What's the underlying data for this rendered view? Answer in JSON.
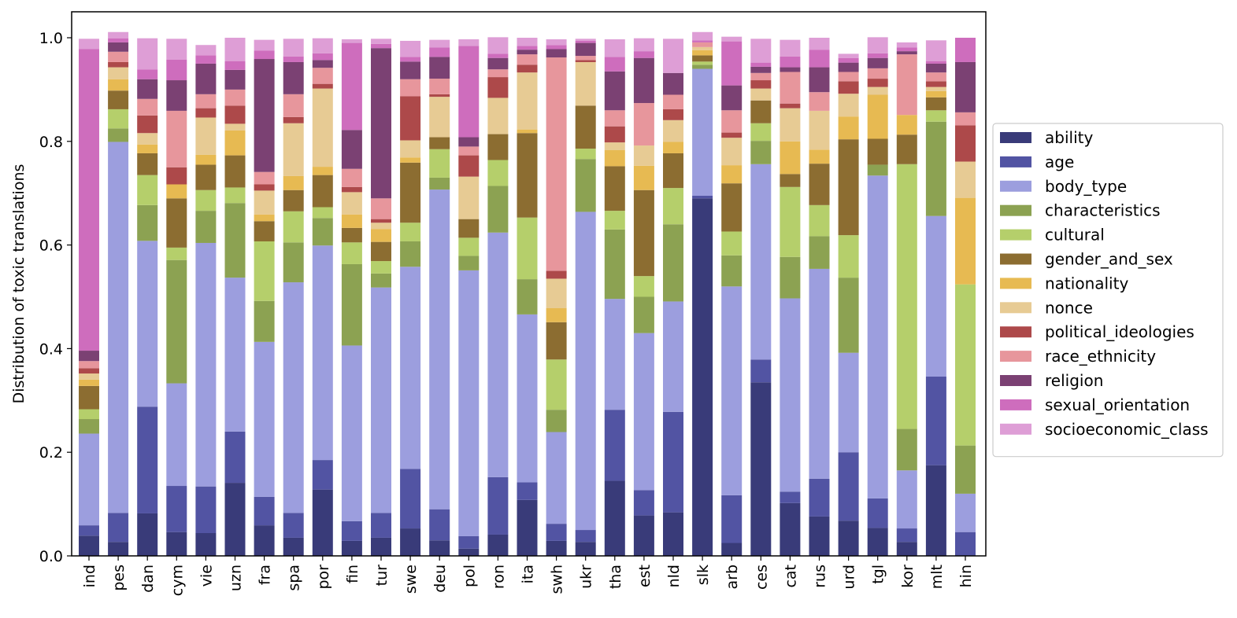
{
  "chart_data": {
    "type": "bar",
    "stacked": true,
    "title": "",
    "xlabel": "",
    "ylabel": "Distribution of toxic translations",
    "ylim": [
      0,
      1.0
    ],
    "yticks": [
      "0.0",
      "0.2",
      "0.4",
      "0.6",
      "0.8",
      "1.0"
    ],
    "grid": false,
    "legend_position": "right",
    "categories": [
      "ind",
      "pes",
      "dan",
      "cym",
      "vie",
      "uzn",
      "fra",
      "spa",
      "por",
      "fin",
      "tur",
      "swe",
      "deu",
      "pol",
      "ron",
      "ita",
      "swh",
      "ukr",
      "tha",
      "est",
      "nld",
      "slk",
      "arb",
      "ces",
      "cat",
      "rus",
      "urd",
      "tgl",
      "kor",
      "mlt",
      "hin"
    ],
    "series": [
      {
        "name": "ability",
        "color": "#393b79",
        "values": [
          0.039,
          0.027,
          0.082,
          0.046,
          0.044,
          0.141,
          0.059,
          0.035,
          0.128,
          0.029,
          0.035,
          0.053,
          0.03,
          0.014,
          0.041,
          0.108,
          0.029,
          0.027,
          0.145,
          0.078,
          0.084,
          0.69,
          0.025,
          0.335,
          0.102,
          0.076,
          0.068,
          0.054,
          0.027,
          0.175,
          0.0
        ]
      },
      {
        "name": "age",
        "color": "#5254a3",
        "values": [
          0.02,
          0.056,
          0.206,
          0.089,
          0.09,
          0.099,
          0.055,
          0.048,
          0.057,
          0.038,
          0.048,
          0.115,
          0.06,
          0.024,
          0.111,
          0.034,
          0.033,
          0.023,
          0.137,
          0.049,
          0.194,
          0.005,
          0.092,
          0.044,
          0.022,
          0.073,
          0.132,
          0.057,
          0.026,
          0.171,
          0.046
        ]
      },
      {
        "name": "body_type",
        "color": "#9c9ede",
        "values": [
          0.177,
          0.716,
          0.32,
          0.198,
          0.47,
          0.297,
          0.299,
          0.445,
          0.414,
          0.339,
          0.435,
          0.39,
          0.617,
          0.513,
          0.472,
          0.324,
          0.177,
          0.614,
          0.214,
          0.303,
          0.213,
          0.245,
          0.403,
          0.377,
          0.373,
          0.405,
          0.192,
          0.623,
          0.112,
          0.31,
          0.074
        ]
      },
      {
        "name": "characteristics",
        "color": "#8ca252",
        "values": [
          0.028,
          0.026,
          0.069,
          0.238,
          0.062,
          0.144,
          0.079,
          0.077,
          0.053,
          0.157,
          0.027,
          0.049,
          0.023,
          0.028,
          0.09,
          0.068,
          0.043,
          0.102,
          0.134,
          0.07,
          0.149,
          0.008,
          0.06,
          0.045,
          0.08,
          0.063,
          0.145,
          0.021,
          0.08,
          0.182,
          0.093
        ]
      },
      {
        "name": "cultural",
        "color": "#b5cf6b",
        "values": [
          0.019,
          0.037,
          0.058,
          0.024,
          0.04,
          0.03,
          0.115,
          0.06,
          0.021,
          0.042,
          0.024,
          0.036,
          0.055,
          0.035,
          0.05,
          0.119,
          0.097,
          0.02,
          0.036,
          0.04,
          0.07,
          0.006,
          0.046,
          0.034,
          0.135,
          0.06,
          0.082,
          0.0,
          0.511,
          0.022,
          0.311
        ]
      },
      {
        "name": "gender_and_sex",
        "color": "#8c6d31",
        "values": [
          0.045,
          0.036,
          0.042,
          0.095,
          0.049,
          0.062,
          0.039,
          0.041,
          0.062,
          0.028,
          0.037,
          0.116,
          0.023,
          0.036,
          0.05,
          0.163,
          0.072,
          0.083,
          0.086,
          0.166,
          0.067,
          0.012,
          0.093,
          0.044,
          0.025,
          0.08,
          0.185,
          0.05,
          0.057,
          0.025,
          0.0
        ]
      },
      {
        "name": "nationality",
        "color": "#e7ba52",
        "values": [
          0.012,
          0.022,
          0.017,
          0.027,
          0.019,
          0.048,
          0.013,
          0.027,
          0.016,
          0.026,
          0.025,
          0.01,
          0.0,
          0.0,
          0.0,
          0.007,
          0.027,
          0.0,
          0.031,
          0.047,
          0.022,
          0.01,
          0.035,
          0.0,
          0.063,
          0.027,
          0.044,
          0.085,
          0.038,
          0.012,
          0.167
        ]
      },
      {
        "name": "nonce",
        "color": "#e7cb94",
        "values": [
          0.012,
          0.023,
          0.022,
          0.0,
          0.072,
          0.013,
          0.046,
          0.102,
          0.151,
          0.043,
          0.012,
          0.033,
          0.078,
          0.082,
          0.07,
          0.11,
          0.057,
          0.084,
          0.015,
          0.039,
          0.042,
          0.006,
          0.053,
          0.023,
          0.064,
          0.075,
          0.044,
          0.015,
          0.0,
          0.008,
          0.07
        ]
      },
      {
        "name": "political_ideologies",
        "color": "#ad494a",
        "values": [
          0.01,
          0.01,
          0.034,
          0.033,
          0.018,
          0.035,
          0.012,
          0.012,
          0.009,
          0.01,
          0.007,
          0.085,
          0.005,
          0.041,
          0.04,
          0.015,
          0.015,
          0.004,
          0.031,
          0.0,
          0.021,
          0.0,
          0.01,
          0.016,
          0.009,
          0.0,
          0.024,
          0.016,
          0.0,
          0.011,
          0.07
        ]
      },
      {
        "name": "race_ethnicity",
        "color": "#e7969c",
        "values": [
          0.014,
          0.02,
          0.032,
          0.109,
          0.027,
          0.031,
          0.024,
          0.044,
          0.031,
          0.035,
          0.04,
          0.033,
          0.03,
          0.017,
          0.015,
          0.02,
          0.412,
          0.008,
          0.031,
          0.082,
          0.028,
          0.009,
          0.043,
          0.014,
          0.061,
          0.036,
          0.018,
          0.02,
          0.117,
          0.017,
          0.025
        ]
      },
      {
        "name": "religion",
        "color": "#7b4173",
        "values": [
          0.02,
          0.018,
          0.038,
          0.059,
          0.059,
          0.038,
          0.218,
          0.062,
          0.015,
          0.075,
          0.29,
          0.034,
          0.042,
          0.018,
          0.022,
          0.009,
          0.016,
          0.025,
          0.075,
          0.087,
          0.042,
          0.0,
          0.048,
          0.012,
          0.009,
          0.048,
          0.018,
          0.02,
          0.006,
          0.017,
          0.097
        ]
      },
      {
        "name": "sexual_orientation",
        "color": "#ce6dbd",
        "values": [
          0.582,
          0.008,
          0.019,
          0.04,
          0.016,
          0.017,
          0.016,
          0.011,
          0.013,
          0.168,
          0.008,
          0.009,
          0.018,
          0.176,
          0.008,
          0.007,
          0.008,
          0.004,
          0.028,
          0.013,
          0.0,
          0.004,
          0.085,
          0.008,
          0.021,
          0.034,
          0.009,
          0.009,
          0.007,
          0.005,
          0.047
        ]
      },
      {
        "name": "socioeconomic_class",
        "color": "#de9ed6",
        "values": [
          0.02,
          0.012,
          0.06,
          0.04,
          0.02,
          0.045,
          0.021,
          0.034,
          0.029,
          0.007,
          0.01,
          0.031,
          0.015,
          0.013,
          0.032,
          0.016,
          0.011,
          0.004,
          0.034,
          0.025,
          0.066,
          0.016,
          0.009,
          0.046,
          0.032,
          0.023,
          0.008,
          0.031,
          0.01,
          0.04,
          0.0
        ]
      }
    ]
  }
}
